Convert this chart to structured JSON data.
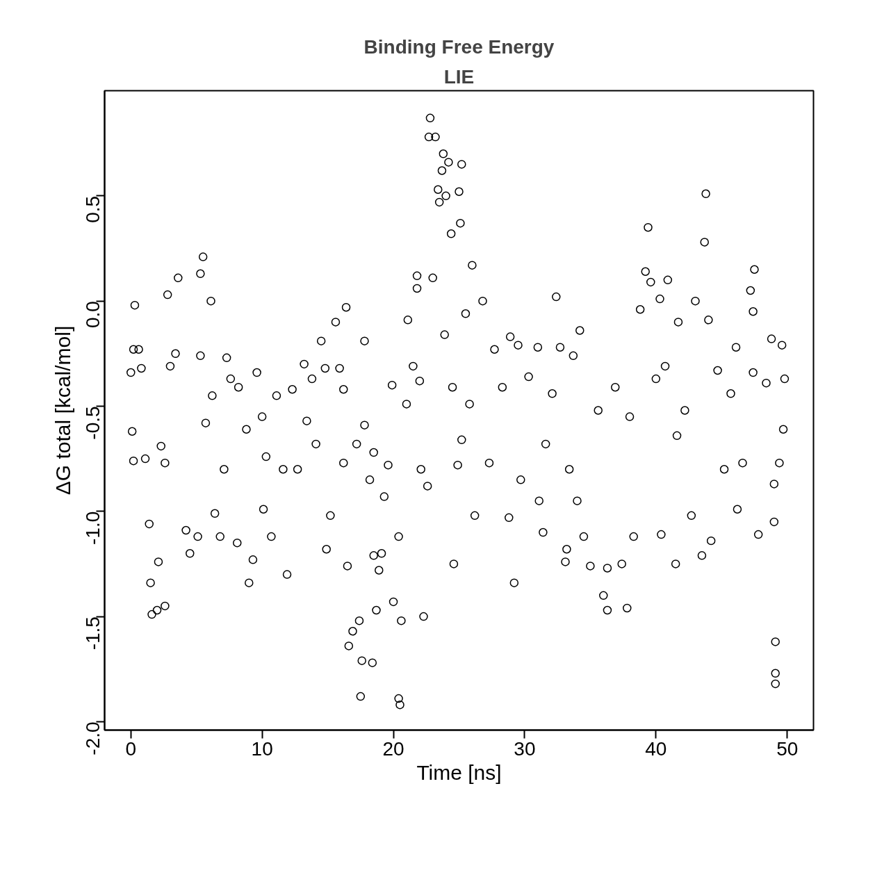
{
  "chart_data": {
    "type": "scatter",
    "title": "Binding Free Energy",
    "subtitle": "LIE",
    "xlabel": "Time [ns]",
    "ylabel": "ΔG total [kcal/mol]",
    "xlim": [
      -2,
      52
    ],
    "ylim": [
      -2.04,
      1.0
    ],
    "xticks": [
      0,
      10,
      20,
      30,
      40,
      50
    ],
    "yticks": [
      {
        "value": -2.0,
        "label": "-2.0"
      },
      {
        "value": -1.5,
        "label": "-1.5"
      },
      {
        "value": -1.0,
        "label": "-1.0"
      },
      {
        "value": -0.5,
        "label": "-0.5"
      },
      {
        "value": 0.0,
        "label": "0.0"
      },
      {
        "value": 0.5,
        "label": "0.5"
      }
    ],
    "grid": false,
    "marker": "circle",
    "series": [
      {
        "color": "#000000",
        "x": [
          0,
          0.1,
          0.3,
          0.2,
          0.6,
          0.2,
          0.8,
          1.1,
          1.4,
          1.5,
          1.6,
          2.0,
          2.1,
          2.3,
          2.6,
          2.8,
          3.6,
          3.0,
          3.4,
          4.2,
          4.5,
          5.1,
          5.3,
          5.5,
          5.3,
          6.1,
          6.2,
          5.7,
          6.4,
          6.8,
          7.3,
          7.6,
          7.1,
          8.1,
          8.2,
          9.0,
          9.3,
          9.6,
          10.0,
          10.3,
          10.1,
          10.7,
          11.1,
          11.6,
          11.9,
          12.3,
          12.7,
          13.2,
          13.4,
          13.8,
          14.1,
          14.5,
          14.8,
          14.9,
          15.2,
          15.6,
          15.9,
          16.2,
          16.4,
          16.2,
          16.5,
          16.6,
          16.9,
          17.2,
          17.4,
          17.5,
          17.6,
          17.8,
          17.8,
          18.2,
          18.4,
          18.5,
          18.7,
          18.9,
          19.1,
          19.3,
          19.6,
          19.9,
          20.0,
          20.4,
          20.5,
          20.6,
          20.4,
          21.0,
          21.1,
          21.5,
          21.8,
          21.8,
          22.0,
          22.3,
          22.6,
          22.7,
          22.8,
          23.0,
          23.2,
          23.4,
          23.5,
          23.7,
          23.8,
          24.0,
          24.2,
          24.4,
          23.9,
          24.5,
          24.6,
          24.9,
          25.0,
          25.2,
          25.1,
          25.5,
          26.0,
          25.8,
          26.2,
          26.8,
          27.3,
          27.7,
          28.3,
          28.9,
          28.8,
          29.2,
          29.5,
          29.7,
          30.3,
          31.0,
          31.1,
          31.4,
          31.6,
          32.1,
          32.4,
          32.7,
          33.1,
          33.2,
          33.7,
          34.2,
          34.0,
          34.5,
          35.0,
          35.6,
          36.0,
          36.3,
          36.3,
          36.9,
          37.4,
          37.8,
          38.3,
          38.8,
          39.2,
          39.4,
          39.6,
          40.0,
          40.3,
          40.4,
          40.9,
          40.7,
          41.5,
          41.7,
          42.2,
          42.7,
          43.0,
          43.5,
          43.7,
          43.8,
          44.0,
          44.2,
          44.7,
          45.2,
          45.7,
          46.1,
          46.6,
          47.2,
          47.4,
          47.5,
          47.4,
          47.8,
          48.4,
          48.8,
          49.0,
          49.0,
          49.1,
          49.1,
          49.1,
          49.6,
          49.8,
          49.4,
          49.7,
          8.8,
          2.6,
          18.5,
          22.1,
          25.2,
          33.4,
          38.0,
          41.6,
          46.2
        ],
        "values": [
          -0.34,
          -0.62,
          -0.02,
          -0.23,
          -0.23,
          -0.76,
          -0.32,
          -0.75,
          -1.06,
          -1.34,
          -1.49,
          -1.47,
          -1.24,
          -0.69,
          -1.45,
          0.03,
          0.11,
          -0.31,
          -0.25,
          -1.09,
          -1.2,
          -1.12,
          0.13,
          0.21,
          -0.26,
          0.0,
          -0.45,
          -0.58,
          -1.01,
          -1.12,
          -0.27,
          -0.37,
          -0.8,
          -1.15,
          -0.41,
          -1.34,
          -1.23,
          -0.34,
          -0.55,
          -0.74,
          -0.99,
          -1.12,
          -0.45,
          -0.8,
          -1.3,
          -0.42,
          -0.8,
          -0.3,
          -0.57,
          -0.37,
          -0.68,
          -0.19,
          -0.32,
          -1.18,
          -1.02,
          -0.1,
          -0.32,
          -0.77,
          -0.03,
          -0.42,
          -1.26,
          -1.64,
          -1.57,
          -0.68,
          -1.52,
          -1.88,
          -1.71,
          -0.19,
          -0.59,
          -0.85,
          -1.72,
          -1.21,
          -1.47,
          -1.28,
          -1.2,
          -0.93,
          -0.78,
          -0.4,
          -1.43,
          -1.89,
          -1.92,
          -1.52,
          -1.12,
          -0.49,
          -0.09,
          -0.31,
          0.12,
          0.06,
          -0.38,
          -1.5,
          -0.88,
          0.78,
          0.87,
          0.11,
          0.78,
          0.53,
          0.47,
          0.62,
          0.7,
          0.5,
          0.66,
          0.32,
          -0.16,
          -0.41,
          -1.25,
          -0.78,
          0.52,
          0.65,
          0.37,
          -0.06,
          0.17,
          -0.49,
          -1.02,
          0.0,
          -0.77,
          -0.23,
          -0.41,
          -0.17,
          -1.03,
          -1.34,
          -0.21,
          -0.85,
          -0.36,
          -0.22,
          -0.95,
          -1.1,
          -0.68,
          -0.44,
          0.02,
          -0.22,
          -1.24,
          -1.18,
          -0.26,
          -0.14,
          -0.95,
          -1.12,
          -1.26,
          -0.52,
          -1.4,
          -1.47,
          -1.27,
          -0.41,
          -1.25,
          -1.46,
          -1.12,
          -0.04,
          0.14,
          0.35,
          0.09,
          -0.37,
          0.01,
          -1.11,
          0.1,
          -0.31,
          -1.25,
          -0.1,
          -0.52,
          -1.02,
          0.0,
          -1.21,
          0.28,
          0.51,
          -0.09,
          -1.14,
          -0.33,
          -0.8,
          -0.44,
          -0.22,
          -0.77,
          0.05,
          -0.05,
          0.15,
          -0.34,
          -1.11,
          -0.39,
          -0.18,
          -0.87,
          -1.05,
          -1.62,
          -1.77,
          -1.82,
          -0.21,
          -0.37,
          -0.77,
          -0.61,
          -0.61,
          -0.77,
          -0.72,
          -0.8,
          -0.66,
          -0.8,
          -0.55,
          -0.64,
          -0.99
        ]
      }
    ]
  }
}
